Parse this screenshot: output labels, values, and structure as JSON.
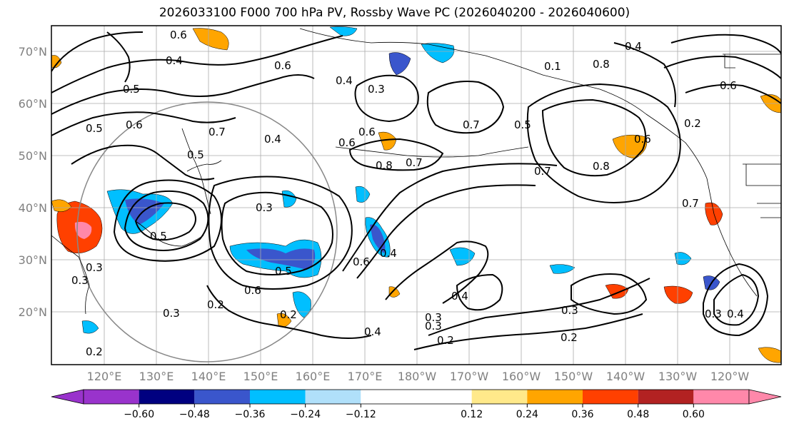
{
  "title": "2026033100 F000 700 hPa PV, Rossby Wave PC (2026040200 - 2026040600)",
  "map": {
    "lat_labels": [
      "70°N",
      "60°N",
      "50°N",
      "40°N",
      "30°N",
      "20°N"
    ],
    "lon_labels": [
      "120°E",
      "130°E",
      "140°E",
      "150°E",
      "160°E",
      "170°E",
      "180°W",
      "170°W",
      "160°W",
      "150°W",
      "140°W",
      "130°W",
      "120°W"
    ],
    "contour_labels": [
      {
        "text": "0.6"
      },
      {
        "text": "0.4"
      },
      {
        "text": "0.5"
      },
      {
        "text": "0.6"
      },
      {
        "text": "0.4"
      },
      {
        "text": "0.3"
      },
      {
        "text": "0.6"
      },
      {
        "text": "0.7"
      },
      {
        "text": "0.4"
      },
      {
        "text": "0.6"
      },
      {
        "text": "0.8"
      },
      {
        "text": "0.7"
      },
      {
        "text": "0.6"
      },
      {
        "text": "0.7"
      },
      {
        "text": "0.5"
      },
      {
        "text": "0.4"
      },
      {
        "text": "0.1"
      },
      {
        "text": "0.3"
      },
      {
        "text": "0.7"
      },
      {
        "text": "0.8"
      },
      {
        "text": "0.6"
      },
      {
        "text": "0.2"
      },
      {
        "text": "0.6"
      },
      {
        "text": "0.3"
      },
      {
        "text": "0.5"
      },
      {
        "text": "0.6"
      },
      {
        "text": "0.4"
      },
      {
        "text": "0.3"
      },
      {
        "text": "0.2"
      },
      {
        "text": "0.2"
      },
      {
        "text": "0.6"
      },
      {
        "text": "0.4"
      },
      {
        "text": "0.3"
      },
      {
        "text": "0.4"
      },
      {
        "text": "0.2"
      },
      {
        "text": "0.3"
      },
      {
        "text": "0.2"
      },
      {
        "text": "0.3"
      },
      {
        "text": "0.4"
      },
      {
        "text": "0.7"
      },
      {
        "text": "0.5"
      },
      {
        "text": "0.8"
      },
      {
        "text": "0.3"
      },
      {
        "text": "0.3"
      },
      {
        "text": "0.2"
      },
      {
        "text": "0.5"
      },
      {
        "text": "0.5"
      }
    ]
  },
  "colorbar": {
    "ticks": [
      "−0.60",
      "−0.48",
      "−0.36",
      "−0.24",
      "−0.12",
      "0.12",
      "0.24",
      "0.36",
      "0.48",
      "0.60"
    ],
    "tick_values": [
      -0.6,
      -0.48,
      -0.36,
      -0.24,
      -0.12,
      0.12,
      0.24,
      0.36,
      0.48,
      0.6
    ],
    "colors": [
      "#9933cc",
      "#000080",
      "#3a56cc",
      "#00bfff",
      "#b0e0fa",
      "#ffffff",
      "#ffe98a",
      "#ffa500",
      "#ff4000",
      "#b22222",
      "#ff88aa",
      "#ff88aa"
    ]
  }
}
